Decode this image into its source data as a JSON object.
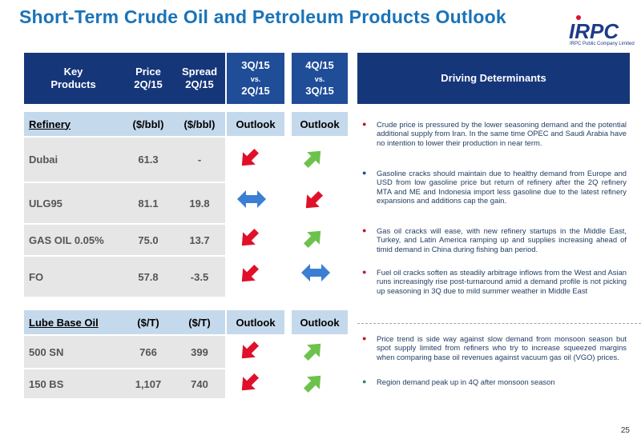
{
  "title": "Short-Term Crude Oil and Petroleum Products Outlook",
  "logo": {
    "brand": "IRPC",
    "tagline": "IRPC Public Company Limited"
  },
  "header": {
    "key_products": [
      "Key",
      "Products"
    ],
    "price": [
      "Price",
      "2Q/15"
    ],
    "spread": [
      "Spread",
      "2Q/15"
    ],
    "q3": {
      "top": "3Q/15",
      "vs": "vs.",
      "bottom": "2Q/15"
    },
    "q4": {
      "top": "4Q/15",
      "vs": "vs.",
      "bottom": "3Q/15"
    },
    "driving": "Driving Determinants"
  },
  "refinery": {
    "section_label": "Refinery",
    "price_unit": "($/bbl)",
    "spread_unit": "($/bbl)",
    "outlook1": "Outlook",
    "outlook2": "Outlook",
    "rows": [
      {
        "name": "Dubai",
        "price": "61.3",
        "spread": "-",
        "q3": "down",
        "q4": "up"
      },
      {
        "name": "ULG95",
        "price": "81.1",
        "spread": "19.8",
        "q3": "flat",
        "q4": "down"
      },
      {
        "name": "GAS OIL 0.05%",
        "price": "75.0",
        "spread": "13.7",
        "q3": "down",
        "q4": "up"
      },
      {
        "name": "FO",
        "price": "57.8",
        "spread": "-3.5",
        "q3": "down",
        "q4": "flat"
      }
    ]
  },
  "lube": {
    "section_label": "Lube Base Oil",
    "price_unit": "($/T)",
    "spread_unit": "($/T)",
    "outlook1": "Outlook",
    "outlook2": "Outlook",
    "rows": [
      {
        "name": "500 SN",
        "price": "766",
        "spread": "399",
        "q3": "down",
        "q4": "up"
      },
      {
        "name": "150 BS",
        "price": "1,107",
        "spread": "740",
        "q3": "down",
        "q4": "up"
      }
    ]
  },
  "determinants": {
    "refinery": [
      "Crude price is pressured by the lower seasoning demand and the potential additional supply from Iran. In the same time OPEC and Saudi Arabia have no intention to lower their production in near term.",
      "Gasoline cracks should  maintain due to healthy demand from Europe and USD from low gasoline price but return of refinery after the 2Q refinery MTA and ME and Indonesia import less gasoline due to the latest refinery expansions and additions cap the gain.",
      "Gas oil cracks will ease, with new refinery startups in the Middle East, Turkey, and Latin America ramping up and supplies increasing ahead of  timid demand in China during fishing ban period.",
      "Fuel oil cracks soften as steadily arbitrage inflows from the West and Asian runs increasingly rise post-turnaround amid a demand profile is not picking up seasoning in 3Q due to mild summer weather in Middle East"
    ],
    "lube": [
      "Price trend is side way against slow demand  from monsoon season but spot supply limited  from refiners who try to increase squeezed margins when comparing base oil revenues against  vacuum gas oil (VGO) prices.",
      "Region demand  peak up in 4Q after monsoon season"
    ]
  },
  "colors": {
    "title": "#1a73b8",
    "header": "#16367a",
    "arrow_down": "#e0102a",
    "arrow_up": "#6dc24b",
    "arrow_flat": "#3b7fd4"
  },
  "page_number": "25"
}
